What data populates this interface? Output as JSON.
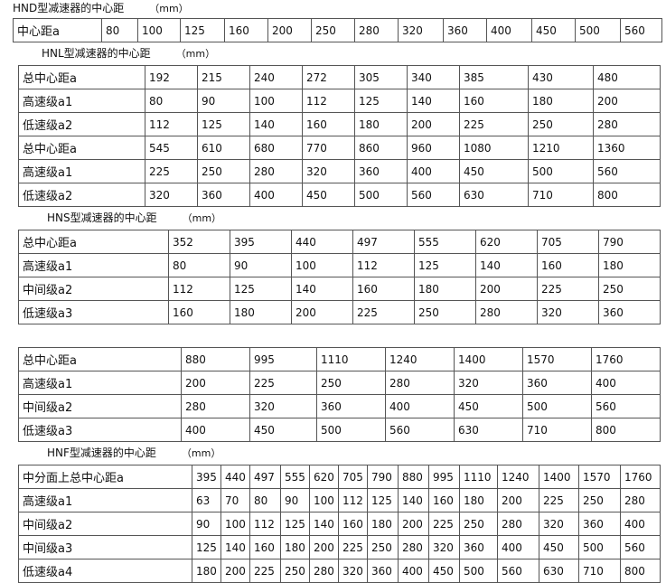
{
  "tables": [
    {
      "title": "HND型减速器的中心距",
      "unit": "（mm）",
      "rows": [
        [
          "中心距a",
          "80",
          "100",
          "125",
          "160",
          "200",
          "250",
          "280",
          "320",
          "360",
          "400",
          "450",
          "500",
          "560"
        ]
      ]
    },
    {
      "title": "HNL型减速器的中心距",
      "unit": "（mm）",
      "rows": [
        [
          "总中心距a",
          "192",
          "215",
          "240",
          "272",
          "305",
          "340",
          "385",
          "430",
          "480"
        ],
        [
          "高速级a1",
          "80",
          "90",
          "100",
          "112",
          "125",
          "140",
          "160",
          "180",
          "200"
        ],
        [
          "低速级a2",
          "112",
          "125",
          "140",
          "160",
          "180",
          "200",
          "225",
          "250",
          "280"
        ],
        [
          "总中心距a",
          "545",
          "610",
          "680",
          "770",
          "860",
          "960",
          "1080",
          "1210",
          "1360"
        ],
        [
          "高速级a1",
          "225",
          "250",
          "280",
          "320",
          "360",
          "400",
          "450",
          "500",
          "560"
        ],
        [
          "低速级a2",
          "320",
          "360",
          "400",
          "450",
          "500",
          "560",
          "630",
          "710",
          "800"
        ]
      ]
    },
    {
      "title": "HNS型减速器的中心距",
      "unit": "（mm）",
      "rows": [
        [
          "总中心距a",
          "352",
          "395",
          "440",
          "497",
          "555",
          "620",
          "705",
          "790"
        ],
        [
          "高速级a1",
          "80",
          "90",
          "100",
          "112",
          "125",
          "140",
          "160",
          "180"
        ],
        [
          "中间级a2",
          "112",
          "125",
          "140",
          "160",
          "180",
          "200",
          "225",
          "250"
        ],
        [
          "低速级a3",
          "160",
          "180",
          "200",
          "225",
          "250",
          "280",
          "320",
          "360"
        ]
      ]
    },
    {
      "title": "",
      "unit": "",
      "rows": [
        [
          "总中心距a",
          "880",
          "995",
          "1110",
          "1240",
          "1400",
          "1570",
          "1760"
        ],
        [
          "高速级a1",
          "200",
          "225",
          "250",
          "280",
          "320",
          "360",
          "400"
        ],
        [
          "中间级a2",
          "280",
          "320",
          "360",
          "400",
          "450",
          "500",
          "560"
        ],
        [
          "低速级a3",
          "400",
          "450",
          "500",
          "560",
          "630",
          "710",
          "800"
        ]
      ]
    },
    {
      "title": "HNF型减速器的中心距",
      "unit": "（mm）",
      "rows": [
        [
          "中分面上总中心距a",
          "395",
          "440",
          "497",
          "555",
          "620",
          "705",
          "790",
          "880",
          "995",
          "1110",
          "1240",
          "1400",
          "1570",
          "1760"
        ],
        [
          "高速级a1",
          "63",
          "70",
          "80",
          "90",
          "100",
          "112",
          "125",
          "140",
          "160",
          "180",
          "200",
          "225",
          "250",
          "280"
        ],
        [
          "中间级a2",
          "90",
          "100",
          "112",
          "125",
          "140",
          "160",
          "180",
          "200",
          "225",
          "250",
          "280",
          "320",
          "360",
          "400"
        ],
        [
          "中间级a3",
          "125",
          "140",
          "160",
          "180",
          "200",
          "225",
          "250",
          "280",
          "320",
          "360",
          "400",
          "450",
          "500",
          "560"
        ],
        [
          "低速级a4",
          "180",
          "200",
          "225",
          "250",
          "280",
          "320",
          "360",
          "400",
          "450",
          "500",
          "560",
          "630",
          "710",
          "800"
        ]
      ]
    }
  ]
}
